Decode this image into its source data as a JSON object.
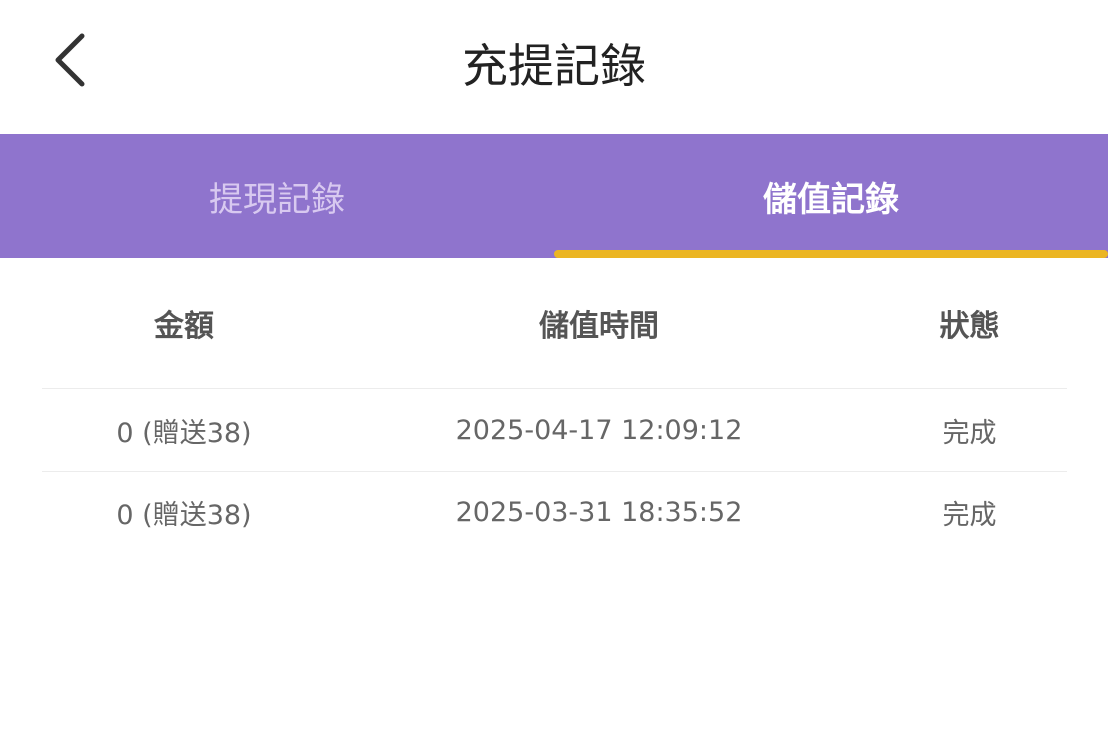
{
  "header": {
    "title": "充提記錄",
    "back_icon": "chevron-left-icon"
  },
  "tabs": [
    {
      "label": "提現記錄",
      "active": false
    },
    {
      "label": "儲值記錄",
      "active": true
    }
  ],
  "colors": {
    "tab_bar": "#8f74cd",
    "indicator": "#ebb523"
  },
  "table": {
    "headers": [
      "金額",
      "儲值時間",
      "狀態"
    ],
    "rows": [
      [
        "0 (贈送38)",
        "2025-04-17 12:09:12",
        "完成"
      ],
      [
        "0 (贈送38)",
        "2025-03-31 18:35:52",
        "完成"
      ]
    ]
  }
}
